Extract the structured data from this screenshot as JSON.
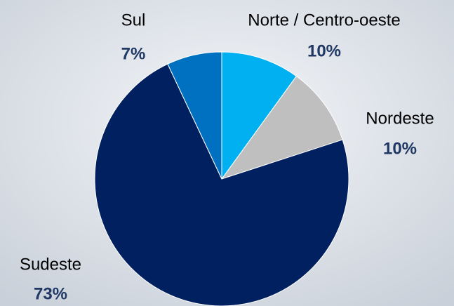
{
  "chart_data": {
    "type": "pie",
    "categories": [
      "Norte / Centro-oeste",
      "Nordeste",
      "Sudeste",
      "Sul"
    ],
    "values": [
      10,
      10,
      73,
      7
    ],
    "value_labels": [
      "10%",
      "10%",
      "73%",
      "7%"
    ],
    "colors": [
      "#00b0f0",
      "#bfbfbf",
      "#002060",
      "#0070c0"
    ]
  }
}
